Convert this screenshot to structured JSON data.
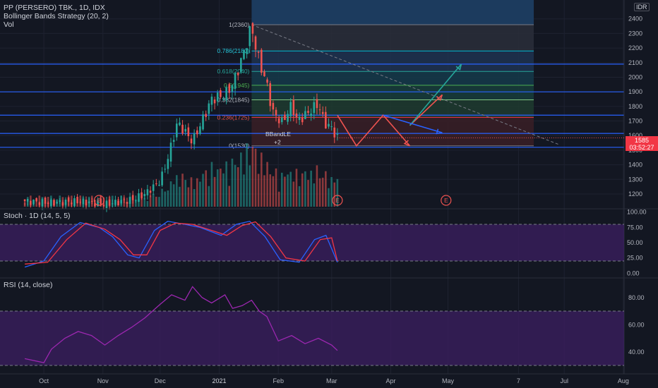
{
  "header": {
    "symbol": "PP (PERSERO) TBK., 1D, IDX",
    "strategy": "Bollinger Bands Strategy (20, 2)",
    "volume": "Vol",
    "currency": "IDR"
  },
  "price_tag": {
    "price": "1585",
    "countdown": "03:52:27"
  },
  "panes": {
    "stoch_title": "Stoch · 1D (14, 5, 5)",
    "rsi_title": "RSI (14, close)"
  },
  "colors": {
    "background": "#131722",
    "up": "#26a69a",
    "down": "#ef5350",
    "stoch_k": "#2962ff",
    "stoch_d": "#f23645",
    "rsi": "#9c27b0",
    "band_fill": "#3a1e5e",
    "fib_line": "#2962ff"
  },
  "chart_data": [
    {
      "type": "candlestick",
      "title": "PP (PERSERO) TBK., 1D, IDX",
      "x_ticks": [
        "Oct",
        "Nov",
        "Dec",
        "2021",
        "Feb",
        "Mar",
        "Apr",
        "May",
        "7",
        "Jul",
        "Aug"
      ],
      "y_ticks": [
        "2400",
        "2300",
        "2200",
        "2100",
        "2000",
        "1900",
        "1800",
        "1700",
        "1600",
        "1500",
        "1400",
        "1300",
        "1200"
      ],
      "ylim": [
        1100,
        2500
      ],
      "last_price": 1585,
      "close_path": [
        {
          "date": "2020-09-21",
          "close": 1150
        },
        {
          "date": "2020-10-05",
          "close": 1140
        },
        {
          "date": "2020-10-19",
          "close": 1150
        },
        {
          "date": "2020-11-02",
          "close": 1130
        },
        {
          "date": "2020-11-16",
          "close": 1160
        },
        {
          "date": "2020-11-23",
          "close": 1200
        },
        {
          "date": "2020-12-01",
          "close": 1290
        },
        {
          "date": "2020-12-04",
          "close": 1400
        },
        {
          "date": "2020-12-07",
          "close": 1540
        },
        {
          "date": "2020-12-10",
          "close": 1690
        },
        {
          "date": "2020-12-15",
          "close": 1610
        },
        {
          "date": "2020-12-18",
          "close": 1560
        },
        {
          "date": "2020-12-23",
          "close": 1700
        },
        {
          "date": "2020-12-28",
          "close": 1850
        },
        {
          "date": "2021-01-04",
          "close": 1880
        },
        {
          "date": "2021-01-08",
          "close": 1950
        },
        {
          "date": "2021-01-13",
          "close": 2130
        },
        {
          "date": "2021-01-18",
          "close": 2350
        },
        {
          "date": "2021-01-21",
          "close": 2150
        },
        {
          "date": "2021-01-26",
          "close": 1950
        },
        {
          "date": "2021-01-29",
          "close": 1760
        },
        {
          "date": "2021-02-03",
          "close": 1690
        },
        {
          "date": "2021-02-08",
          "close": 1810
        },
        {
          "date": "2021-02-11",
          "close": 1700
        },
        {
          "date": "2021-02-16",
          "close": 1750
        },
        {
          "date": "2021-02-22",
          "close": 1820
        },
        {
          "date": "2021-02-25",
          "close": 1690
        },
        {
          "date": "2021-03-01",
          "close": 1650
        },
        {
          "date": "2021-03-04",
          "close": 1585
        }
      ],
      "volume_bars": 108,
      "fib_levels": [
        {
          "ratio": "1",
          "price": 2360
        },
        {
          "ratio": "0.786",
          "price": 2180
        },
        {
          "ratio": "0.618",
          "price": 2040
        },
        {
          "ratio": "0.5",
          "price": 1945
        },
        {
          "ratio": "0.382",
          "price": 1845
        },
        {
          "ratio": "0.236",
          "price": 1725
        },
        {
          "ratio": "0",
          "price": 1530
        }
      ],
      "fib_labels": [
        "1(2360)",
        "0.786(2180)",
        "0.618(2040)",
        "0.5(1945)",
        "0.382(1845)",
        "0.236(1725)",
        "0(1530)"
      ],
      "horizontal_levels": [
        2090,
        1900,
        1740,
        1615,
        1520
      ],
      "signal_label": "BBandLE",
      "signal_qty": "+2",
      "earnings_markers": [
        "E",
        "E",
        "E"
      ],
      "earnings_dates": [
        "2020-10-30",
        "2021-03-04",
        "2021-04-30"
      ],
      "projection_path": [
        {
          "date": "2021-03-04",
          "price": 1740
        },
        {
          "date": "2021-03-14",
          "price": 1530
        },
        {
          "date": "2021-03-28",
          "price": 1740
        },
        {
          "date": "2021-04-11",
          "price": 1530
        }
      ],
      "projection_up": [
        {
          "date": "2021-04-11",
          "price": 1670
        },
        {
          "date": "2021-04-28",
          "price": 1880
        }
      ],
      "projection_alt": [
        {
          "date": "2021-04-11",
          "price": 1670
        },
        {
          "date": "2021-05-08",
          "price": 2090
        }
      ],
      "trendline": [
        {
          "date": "2021-01-18",
          "price": 2360
        },
        {
          "date": "2021-06-28",
          "price": 1540
        }
      ]
    },
    {
      "type": "line",
      "title": "Stoch · 1D (14, 5, 5)",
      "y_ticks": [
        "100.00",
        "75.00",
        "50.00",
        "25.00",
        "0.00"
      ],
      "ylim": [
        0,
        100
      ],
      "bands": [
        20,
        80
      ],
      "series": [
        {
          "values": [
            {
              "date": "2020-09-21",
              "value": 10
            },
            {
              "date": "2020-10-01",
              "value": 20
            },
            {
              "date": "2020-10-10",
              "value": 60
            },
            {
              "date": "2020-10-20",
              "value": 83
            },
            {
              "date": "2020-10-30",
              "value": 75
            },
            {
              "date": "2020-11-06",
              "value": 60
            },
            {
              "date": "2020-11-14",
              "value": 30
            },
            {
              "date": "2020-11-20",
              "value": 25
            },
            {
              "date": "2020-11-28",
              "value": 70
            },
            {
              "date": "2020-12-05",
              "value": 85
            },
            {
              "date": "2020-12-14",
              "value": 80
            },
            {
              "date": "2020-12-22",
              "value": 75
            },
            {
              "date": "2021-01-02",
              "value": 62
            },
            {
              "date": "2021-01-10",
              "value": 80
            },
            {
              "date": "2021-01-17",
              "value": 85
            },
            {
              "date": "2021-01-25",
              "value": 60
            },
            {
              "date": "2021-02-02",
              "value": 22
            },
            {
              "date": "2021-02-12",
              "value": 18
            },
            {
              "date": "2021-02-20",
              "value": 55
            },
            {
              "date": "2021-02-26",
              "value": 62
            },
            {
              "date": "2021-03-04",
              "value": 18
            }
          ]
        },
        {
          "values": [
            {
              "date": "2020-09-21",
              "value": 15
            },
            {
              "date": "2020-10-03",
              "value": 18
            },
            {
              "date": "2020-10-13",
              "value": 55
            },
            {
              "date": "2020-10-23",
              "value": 82
            },
            {
              "date": "2020-11-02",
              "value": 72
            },
            {
              "date": "2020-11-10",
              "value": 55
            },
            {
              "date": "2020-11-17",
              "value": 30
            },
            {
              "date": "2020-11-24",
              "value": 30
            },
            {
              "date": "2020-12-01",
              "value": 70
            },
            {
              "date": "2020-12-09",
              "value": 82
            },
            {
              "date": "2020-12-18",
              "value": 80
            },
            {
              "date": "2020-12-28",
              "value": 70
            },
            {
              "date": "2021-01-05",
              "value": 62
            },
            {
              "date": "2021-01-13",
              "value": 78
            },
            {
              "date": "2021-01-20",
              "value": 84
            },
            {
              "date": "2021-01-28",
              "value": 60
            },
            {
              "date": "2021-02-05",
              "value": 25
            },
            {
              "date": "2021-02-15",
              "value": 20
            },
            {
              "date": "2021-02-23",
              "value": 55
            },
            {
              "date": "2021-03-01",
              "value": 58
            },
            {
              "date": "2021-03-04",
              "value": 20
            }
          ]
        }
      ]
    },
    {
      "type": "line",
      "title": "RSI (14, close)",
      "y_ticks": [
        "80.00",
        "60.00",
        "40.00"
      ],
      "ylim": [
        20,
        90
      ],
      "bands": [
        30,
        70
      ],
      "series": [
        {
          "values": [
            {
              "date": "2020-09-21",
              "value": 35
            },
            {
              "date": "2020-10-01",
              "value": 32
            },
            {
              "date": "2020-10-05",
              "value": 42
            },
            {
              "date": "2020-10-12",
              "value": 50
            },
            {
              "date": "2020-10-19",
              "value": 55
            },
            {
              "date": "2020-10-26",
              "value": 52
            },
            {
              "date": "2020-11-02",
              "value": 45
            },
            {
              "date": "2020-11-09",
              "value": 52
            },
            {
              "date": "2020-11-16",
              "value": 58
            },
            {
              "date": "2020-11-23",
              "value": 65
            },
            {
              "date": "2020-12-01",
              "value": 75
            },
            {
              "date": "2020-12-07",
              "value": 82
            },
            {
              "date": "2020-12-14",
              "value": 78
            },
            {
              "date": "2020-12-18",
              "value": 88
            },
            {
              "date": "2020-12-23",
              "value": 80
            },
            {
              "date": "2020-12-28",
              "value": 76
            },
            {
              "date": "2021-01-04",
              "value": 82
            },
            {
              "date": "2021-01-08",
              "value": 72
            },
            {
              "date": "2021-01-13",
              "value": 74
            },
            {
              "date": "2021-01-18",
              "value": 78
            },
            {
              "date": "2021-01-22",
              "value": 70
            },
            {
              "date": "2021-01-26",
              "value": 66
            },
            {
              "date": "2021-02-01",
              "value": 48
            },
            {
              "date": "2021-02-08",
              "value": 52
            },
            {
              "date": "2021-02-15",
              "value": 46
            },
            {
              "date": "2021-02-22",
              "value": 50
            },
            {
              "date": "2021-03-01",
              "value": 45
            },
            {
              "date": "2021-03-04",
              "value": 41
            }
          ]
        }
      ]
    }
  ]
}
